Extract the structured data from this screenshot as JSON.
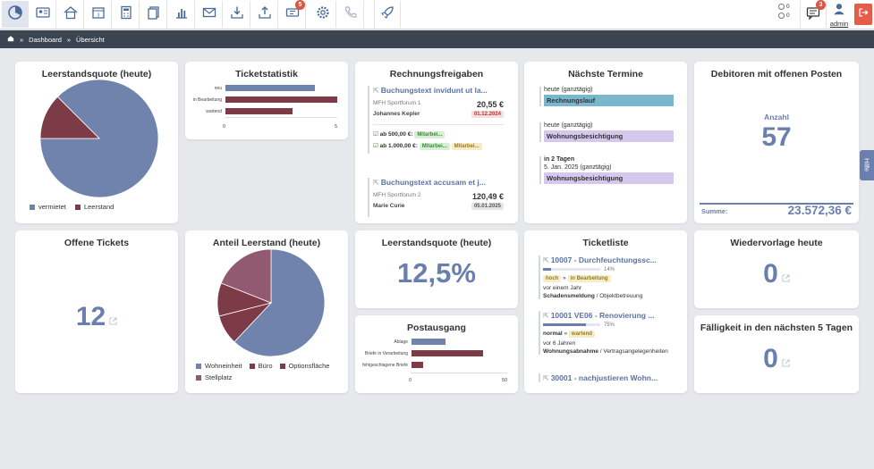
{
  "toolbar": {
    "icons": [
      "dashboard-icon",
      "contacts-icon",
      "home-icon",
      "calendar-icon",
      "calculator-icon",
      "documents-icon",
      "chart-icon",
      "mail-icon",
      "download-icon",
      "upload-icon",
      "ticket-icon",
      "settings-icon",
      "phone-icon",
      "rocket-icon"
    ],
    "ticket_badge": "5",
    "counter_top": "0",
    "counter_bottom": "0",
    "messages_badge": "3",
    "user_name": "admin"
  },
  "breadcrumb": {
    "items": [
      "Dashboard",
      "Übersicht"
    ]
  },
  "help_tab": "Hilfe",
  "colors": {
    "blue": "#6f83ad",
    "maroon": "#7d3a47",
    "mauve": "#915a70",
    "primary": "#6a7fad",
    "logout": "#e45d4a"
  },
  "leerstandsquote": {
    "title": "Leerstandsquote (heute)",
    "legend": [
      "vermietet",
      "Leerstand"
    ]
  },
  "ticketstatistik": {
    "title": "Ticketstatistik",
    "ticks": [
      "0",
      "5"
    ]
  },
  "rechnungsfreigaben": {
    "title": "Rechnungsfreigaben",
    "inv1": {
      "title": "Buchungstext invidunt ut la...",
      "object": "MFH Sportforum 1",
      "person": "Johannes Kepler",
      "amount": "20,55 €",
      "date": "01.12.2024"
    },
    "approvals": [
      {
        "label": "ab 500,00 €:",
        "tags": [
          "Mitarbei..."
        ]
      },
      {
        "label": "ab 1.000,00 €:",
        "tags": [
          "Mitarbei...",
          "Mitarbei..."
        ]
      }
    ],
    "inv2": {
      "title": "Buchungstext accusam et j...",
      "object": "MFH Sportforum 2",
      "person": "Marie Curie",
      "amount": "120,49 €",
      "date": "05.01.2025"
    }
  },
  "termine": {
    "title": "Nächste Termine",
    "items": [
      {
        "when1": "heute (ganztägig)",
        "when2": "",
        "label": "Rechnungslauf",
        "color": "#7ab7cc"
      },
      {
        "when1": "heute (ganztägig)",
        "when2": "",
        "label": "Wohnungsbesichtigung",
        "color": "#d6c7ed"
      },
      {
        "when1": "in 2 Tagen",
        "when2": "5. Jan. 2025 (ganztägig)",
        "label": "Wohnungsbesichtigung",
        "color": "#d6c7ed"
      }
    ]
  },
  "debitoren": {
    "title": "Debitoren mit offenen Posten",
    "count_label": "Anzahl",
    "count": "57",
    "sum_label": "Summe:",
    "sum": "23.572,36 €"
  },
  "offene_tickets": {
    "title": "Offene Tickets",
    "value": "12"
  },
  "anteil_leerstand": {
    "title": "Anteil Leerstand (heute)",
    "legend": [
      "Wohneinheit",
      "Büro",
      "Optionsfläche",
      "Stellplatz"
    ]
  },
  "leerstandsquote2": {
    "title": "Leerstandsquote (heute)",
    "value": "12,5%"
  },
  "postausgang": {
    "title": "Postausgang",
    "ticks": [
      "0",
      "50"
    ]
  },
  "ticketliste": {
    "title": "Ticketliste",
    "items": [
      {
        "title": "10007 - Durchfeuchtungssc...",
        "progress": "14%",
        "priority": "hoch",
        "status": "in Bearbeitung",
        "age": "vor einem Jahr",
        "cat_bold": "Schadensmeldung",
        "cat_rest": " / Objektbetreuung"
      },
      {
        "title": "10001 VE06 - Renovierung ...",
        "progress": "75%",
        "priority": "normal",
        "status": "wartend",
        "age": "vor 6 Jahren",
        "cat_bold": "Wohnungsabnahme",
        "cat_rest": " / Vertragsangelegenheiten"
      },
      {
        "title": "30001 - nachjustieren Wohn...",
        "progress": "",
        "priority": "",
        "status": "",
        "age": "",
        "cat_bold": "",
        "cat_rest": ""
      }
    ]
  },
  "wiedervorlage": {
    "title": "Wiedervorlage heute",
    "value": "0"
  },
  "faelligkeit": {
    "title": "Fälligkeit in den nächsten 5 Tagen",
    "value": "0"
  },
  "chart_data": [
    {
      "type": "pie",
      "title": "Leerstandsquote (heute)",
      "labels": [
        "vermietet",
        "Leerstand"
      ],
      "values": [
        87.5,
        12.5
      ],
      "colors": [
        "#6f83ad",
        "#7d3a47"
      ]
    },
    {
      "type": "bar",
      "title": "Ticketstatistik",
      "categories": [
        "neu",
        "in Bearbeitung",
        "wartend"
      ],
      "values": [
        4,
        5,
        3
      ],
      "colors": [
        "#6f83ad",
        "#7d3a47",
        "#7d3a47"
      ],
      "xlim": [
        0,
        5
      ]
    },
    {
      "type": "pie",
      "title": "Anteil Leerstand (heute)",
      "labels": [
        "Wohneinheit",
        "Büro",
        "Optionsfläche",
        "Stellplatz"
      ],
      "values": [
        62,
        9,
        10,
        19
      ],
      "colors": [
        "#6f83ad",
        "#7d3a47",
        "#7d3a47",
        "#915a70"
      ]
    },
    {
      "type": "bar",
      "title": "Postausgang",
      "categories": [
        "Ablage",
        "Briefe in Verarbeitung",
        "fehlgeschlagene Briefe"
      ],
      "values": [
        18,
        38,
        6
      ],
      "colors": [
        "#6f83ad",
        "#7d3a47",
        "#7d3a47"
      ],
      "xlim": [
        0,
        50
      ]
    }
  ]
}
